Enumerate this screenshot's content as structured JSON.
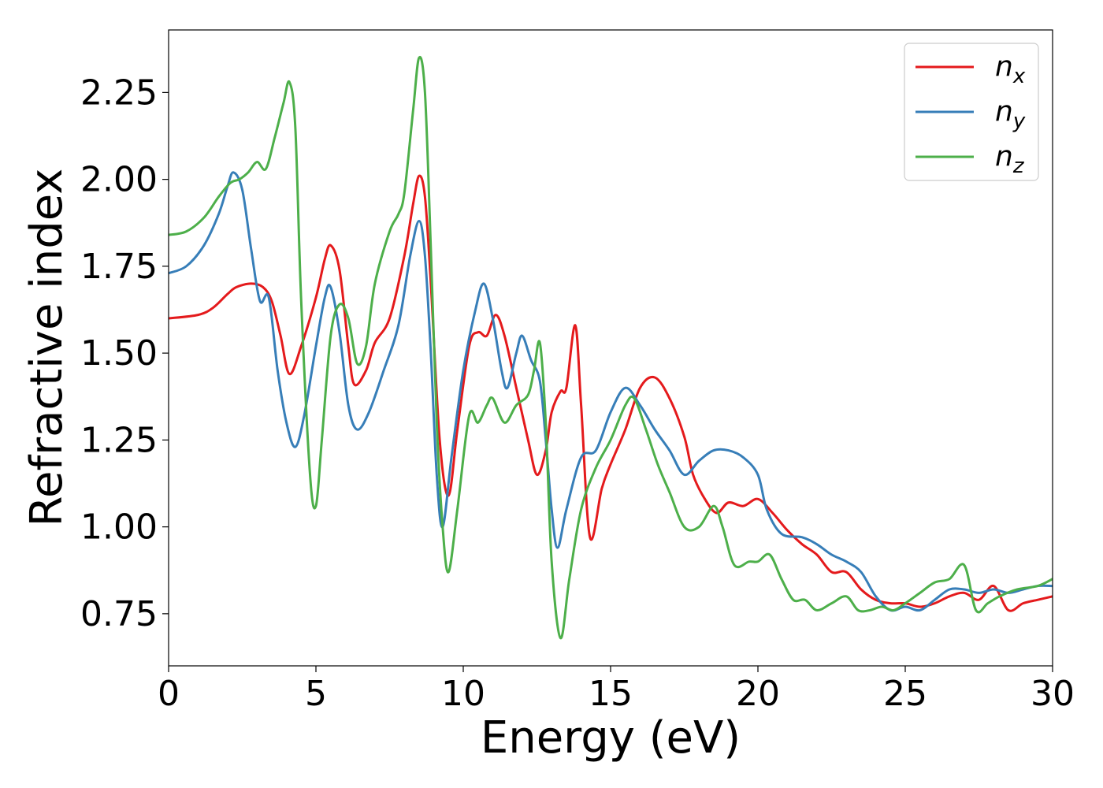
{
  "chart_data": {
    "type": "line",
    "title": "",
    "xlabel": "Energy (eV)",
    "ylabel": "Refractive index",
    "xlim": [
      0,
      30
    ],
    "ylim": [
      0.6,
      2.43
    ],
    "xticks": [
      0,
      5,
      10,
      15,
      20,
      25,
      30
    ],
    "yticks": [
      0.75,
      1.0,
      1.25,
      1.5,
      1.75,
      2.0,
      2.25
    ],
    "grid": false,
    "legend_position": "top-right",
    "series": [
      {
        "name": "n",
        "subscript": "x",
        "color": "#e41a1c",
        "points": [
          [
            0,
            1.6
          ],
          [
            1.0,
            1.61
          ],
          [
            1.5,
            1.63
          ],
          [
            2.0,
            1.67
          ],
          [
            2.3,
            1.69
          ],
          [
            2.8,
            1.7
          ],
          [
            3.2,
            1.69
          ],
          [
            3.5,
            1.65
          ],
          [
            3.8,
            1.55
          ],
          [
            4.1,
            1.44
          ],
          [
            4.5,
            1.52
          ],
          [
            5.0,
            1.66
          ],
          [
            5.3,
            1.77
          ],
          [
            5.5,
            1.81
          ],
          [
            5.8,
            1.74
          ],
          [
            6.1,
            1.52
          ],
          [
            6.3,
            1.41
          ],
          [
            6.7,
            1.45
          ],
          [
            7.0,
            1.53
          ],
          [
            7.5,
            1.6
          ],
          [
            8.0,
            1.78
          ],
          [
            8.3,
            1.93
          ],
          [
            8.5,
            2.01
          ],
          [
            8.7,
            1.95
          ],
          [
            8.9,
            1.7
          ],
          [
            9.2,
            1.25
          ],
          [
            9.5,
            1.09
          ],
          [
            9.8,
            1.28
          ],
          [
            10.2,
            1.52
          ],
          [
            10.5,
            1.56
          ],
          [
            10.8,
            1.55
          ],
          [
            11.1,
            1.61
          ],
          [
            11.4,
            1.55
          ],
          [
            11.8,
            1.4
          ],
          [
            12.2,
            1.25
          ],
          [
            12.5,
            1.15
          ],
          [
            12.8,
            1.22
          ],
          [
            13.0,
            1.33
          ],
          [
            13.3,
            1.39
          ],
          [
            13.5,
            1.4
          ],
          [
            13.8,
            1.58
          ],
          [
            14.0,
            1.35
          ],
          [
            14.3,
            0.97
          ],
          [
            14.7,
            1.11
          ],
          [
            15.0,
            1.18
          ],
          [
            15.5,
            1.28
          ],
          [
            16.0,
            1.4
          ],
          [
            16.5,
            1.43
          ],
          [
            17.0,
            1.37
          ],
          [
            17.5,
            1.26
          ],
          [
            17.8,
            1.15
          ],
          [
            18.2,
            1.08
          ],
          [
            18.6,
            1.04
          ],
          [
            19.0,
            1.07
          ],
          [
            19.5,
            1.06
          ],
          [
            20.0,
            1.08
          ],
          [
            20.5,
            1.04
          ],
          [
            21.0,
            0.99
          ],
          [
            21.5,
            0.95
          ],
          [
            22.0,
            0.92
          ],
          [
            22.5,
            0.87
          ],
          [
            23.0,
            0.87
          ],
          [
            23.5,
            0.82
          ],
          [
            24.0,
            0.79
          ],
          [
            24.5,
            0.78
          ],
          [
            25.0,
            0.78
          ],
          [
            25.5,
            0.77
          ],
          [
            26.0,
            0.78
          ],
          [
            26.5,
            0.8
          ],
          [
            27.0,
            0.81
          ],
          [
            27.5,
            0.79
          ],
          [
            28.0,
            0.83
          ],
          [
            28.5,
            0.76
          ],
          [
            29.0,
            0.78
          ],
          [
            29.5,
            0.79
          ],
          [
            30.0,
            0.8
          ]
        ]
      },
      {
        "name": "n",
        "subscript": "y",
        "color": "#377eb8",
        "points": [
          [
            0,
            1.73
          ],
          [
            0.6,
            1.75
          ],
          [
            1.2,
            1.81
          ],
          [
            1.7,
            1.9
          ],
          [
            2.0,
            1.98
          ],
          [
            2.2,
            2.02
          ],
          [
            2.5,
            1.97
          ],
          [
            2.8,
            1.8
          ],
          [
            3.1,
            1.65
          ],
          [
            3.4,
            1.66
          ],
          [
            3.7,
            1.45
          ],
          [
            4.0,
            1.3
          ],
          [
            4.3,
            1.23
          ],
          [
            4.6,
            1.32
          ],
          [
            5.0,
            1.52
          ],
          [
            5.3,
            1.66
          ],
          [
            5.5,
            1.69
          ],
          [
            5.8,
            1.56
          ],
          [
            6.1,
            1.35
          ],
          [
            6.4,
            1.28
          ],
          [
            6.8,
            1.33
          ],
          [
            7.3,
            1.45
          ],
          [
            7.8,
            1.58
          ],
          [
            8.2,
            1.78
          ],
          [
            8.5,
            1.88
          ],
          [
            8.7,
            1.78
          ],
          [
            8.9,
            1.5
          ],
          [
            9.1,
            1.15
          ],
          [
            9.3,
            1.0
          ],
          [
            9.6,
            1.2
          ],
          [
            10.0,
            1.45
          ],
          [
            10.4,
            1.62
          ],
          [
            10.7,
            1.7
          ],
          [
            11.0,
            1.6
          ],
          [
            11.3,
            1.45
          ],
          [
            11.5,
            1.4
          ],
          [
            11.8,
            1.5
          ],
          [
            12.0,
            1.55
          ],
          [
            12.3,
            1.48
          ],
          [
            12.6,
            1.42
          ],
          [
            12.8,
            1.25
          ],
          [
            13.0,
            1.05
          ],
          [
            13.2,
            0.94
          ],
          [
            13.5,
            1.05
          ],
          [
            14.0,
            1.2
          ],
          [
            14.5,
            1.22
          ],
          [
            15.0,
            1.33
          ],
          [
            15.5,
            1.4
          ],
          [
            16.0,
            1.35
          ],
          [
            16.5,
            1.28
          ],
          [
            17.0,
            1.22
          ],
          [
            17.5,
            1.15
          ],
          [
            18.0,
            1.19
          ],
          [
            18.5,
            1.22
          ],
          [
            19.0,
            1.22
          ],
          [
            19.5,
            1.2
          ],
          [
            20.0,
            1.15
          ],
          [
            20.3,
            1.05
          ],
          [
            20.8,
            0.98
          ],
          [
            21.5,
            0.97
          ],
          [
            22.0,
            0.95
          ],
          [
            22.5,
            0.92
          ],
          [
            23.0,
            0.9
          ],
          [
            23.5,
            0.87
          ],
          [
            24.0,
            0.8
          ],
          [
            24.5,
            0.76
          ],
          [
            25.0,
            0.77
          ],
          [
            25.5,
            0.76
          ],
          [
            26.0,
            0.79
          ],
          [
            26.5,
            0.82
          ],
          [
            27.0,
            0.82
          ],
          [
            27.5,
            0.81
          ],
          [
            28.0,
            0.82
          ],
          [
            28.5,
            0.81
          ],
          [
            29.0,
            0.82
          ],
          [
            29.5,
            0.83
          ],
          [
            30.0,
            0.83
          ]
        ]
      },
      {
        "name": "n",
        "subscript": "z",
        "color": "#4daf4a",
        "points": [
          [
            0,
            1.84
          ],
          [
            0.6,
            1.85
          ],
          [
            1.2,
            1.89
          ],
          [
            1.7,
            1.95
          ],
          [
            2.1,
            1.99
          ],
          [
            2.4,
            2.0
          ],
          [
            2.7,
            2.02
          ],
          [
            3.0,
            2.05
          ],
          [
            3.3,
            2.03
          ],
          [
            3.6,
            2.12
          ],
          [
            3.9,
            2.22
          ],
          [
            4.1,
            2.28
          ],
          [
            4.3,
            2.15
          ],
          [
            4.5,
            1.65
          ],
          [
            4.8,
            1.15
          ],
          [
            5.0,
            1.06
          ],
          [
            5.2,
            1.25
          ],
          [
            5.5,
            1.55
          ],
          [
            5.8,
            1.64
          ],
          [
            6.1,
            1.6
          ],
          [
            6.4,
            1.47
          ],
          [
            6.7,
            1.52
          ],
          [
            7.0,
            1.7
          ],
          [
            7.5,
            1.85
          ],
          [
            7.8,
            1.9
          ],
          [
            8.0,
            1.96
          ],
          [
            8.3,
            2.2
          ],
          [
            8.5,
            2.35
          ],
          [
            8.7,
            2.25
          ],
          [
            8.9,
            1.8
          ],
          [
            9.1,
            1.3
          ],
          [
            9.3,
            1.0
          ],
          [
            9.5,
            0.87
          ],
          [
            9.8,
            1.05
          ],
          [
            10.2,
            1.32
          ],
          [
            10.5,
            1.3
          ],
          [
            10.8,
            1.35
          ],
          [
            11.0,
            1.37
          ],
          [
            11.4,
            1.3
          ],
          [
            11.8,
            1.35
          ],
          [
            12.2,
            1.38
          ],
          [
            12.4,
            1.45
          ],
          [
            12.6,
            1.53
          ],
          [
            12.8,
            1.3
          ],
          [
            13.0,
            0.9
          ],
          [
            13.3,
            0.68
          ],
          [
            13.6,
            0.85
          ],
          [
            14.0,
            1.05
          ],
          [
            14.5,
            1.17
          ],
          [
            15.0,
            1.25
          ],
          [
            15.5,
            1.35
          ],
          [
            15.8,
            1.37
          ],
          [
            16.2,
            1.28
          ],
          [
            16.6,
            1.18
          ],
          [
            17.0,
            1.1
          ],
          [
            17.5,
            1.0
          ],
          [
            18.0,
            1.0
          ],
          [
            18.5,
            1.06
          ],
          [
            18.8,
            1.0
          ],
          [
            19.2,
            0.89
          ],
          [
            19.7,
            0.9
          ],
          [
            20.0,
            0.9
          ],
          [
            20.4,
            0.92
          ],
          [
            20.8,
            0.85
          ],
          [
            21.2,
            0.79
          ],
          [
            21.6,
            0.79
          ],
          [
            22.0,
            0.76
          ],
          [
            22.5,
            0.78
          ],
          [
            23.0,
            0.8
          ],
          [
            23.4,
            0.76
          ],
          [
            23.8,
            0.76
          ],
          [
            24.2,
            0.77
          ],
          [
            24.6,
            0.76
          ],
          [
            25.0,
            0.78
          ],
          [
            25.5,
            0.81
          ],
          [
            26.0,
            0.84
          ],
          [
            26.5,
            0.85
          ],
          [
            27.0,
            0.89
          ],
          [
            27.4,
            0.76
          ],
          [
            27.8,
            0.78
          ],
          [
            28.2,
            0.8
          ],
          [
            28.8,
            0.82
          ],
          [
            29.5,
            0.83
          ],
          [
            30.0,
            0.85
          ]
        ]
      }
    ]
  }
}
